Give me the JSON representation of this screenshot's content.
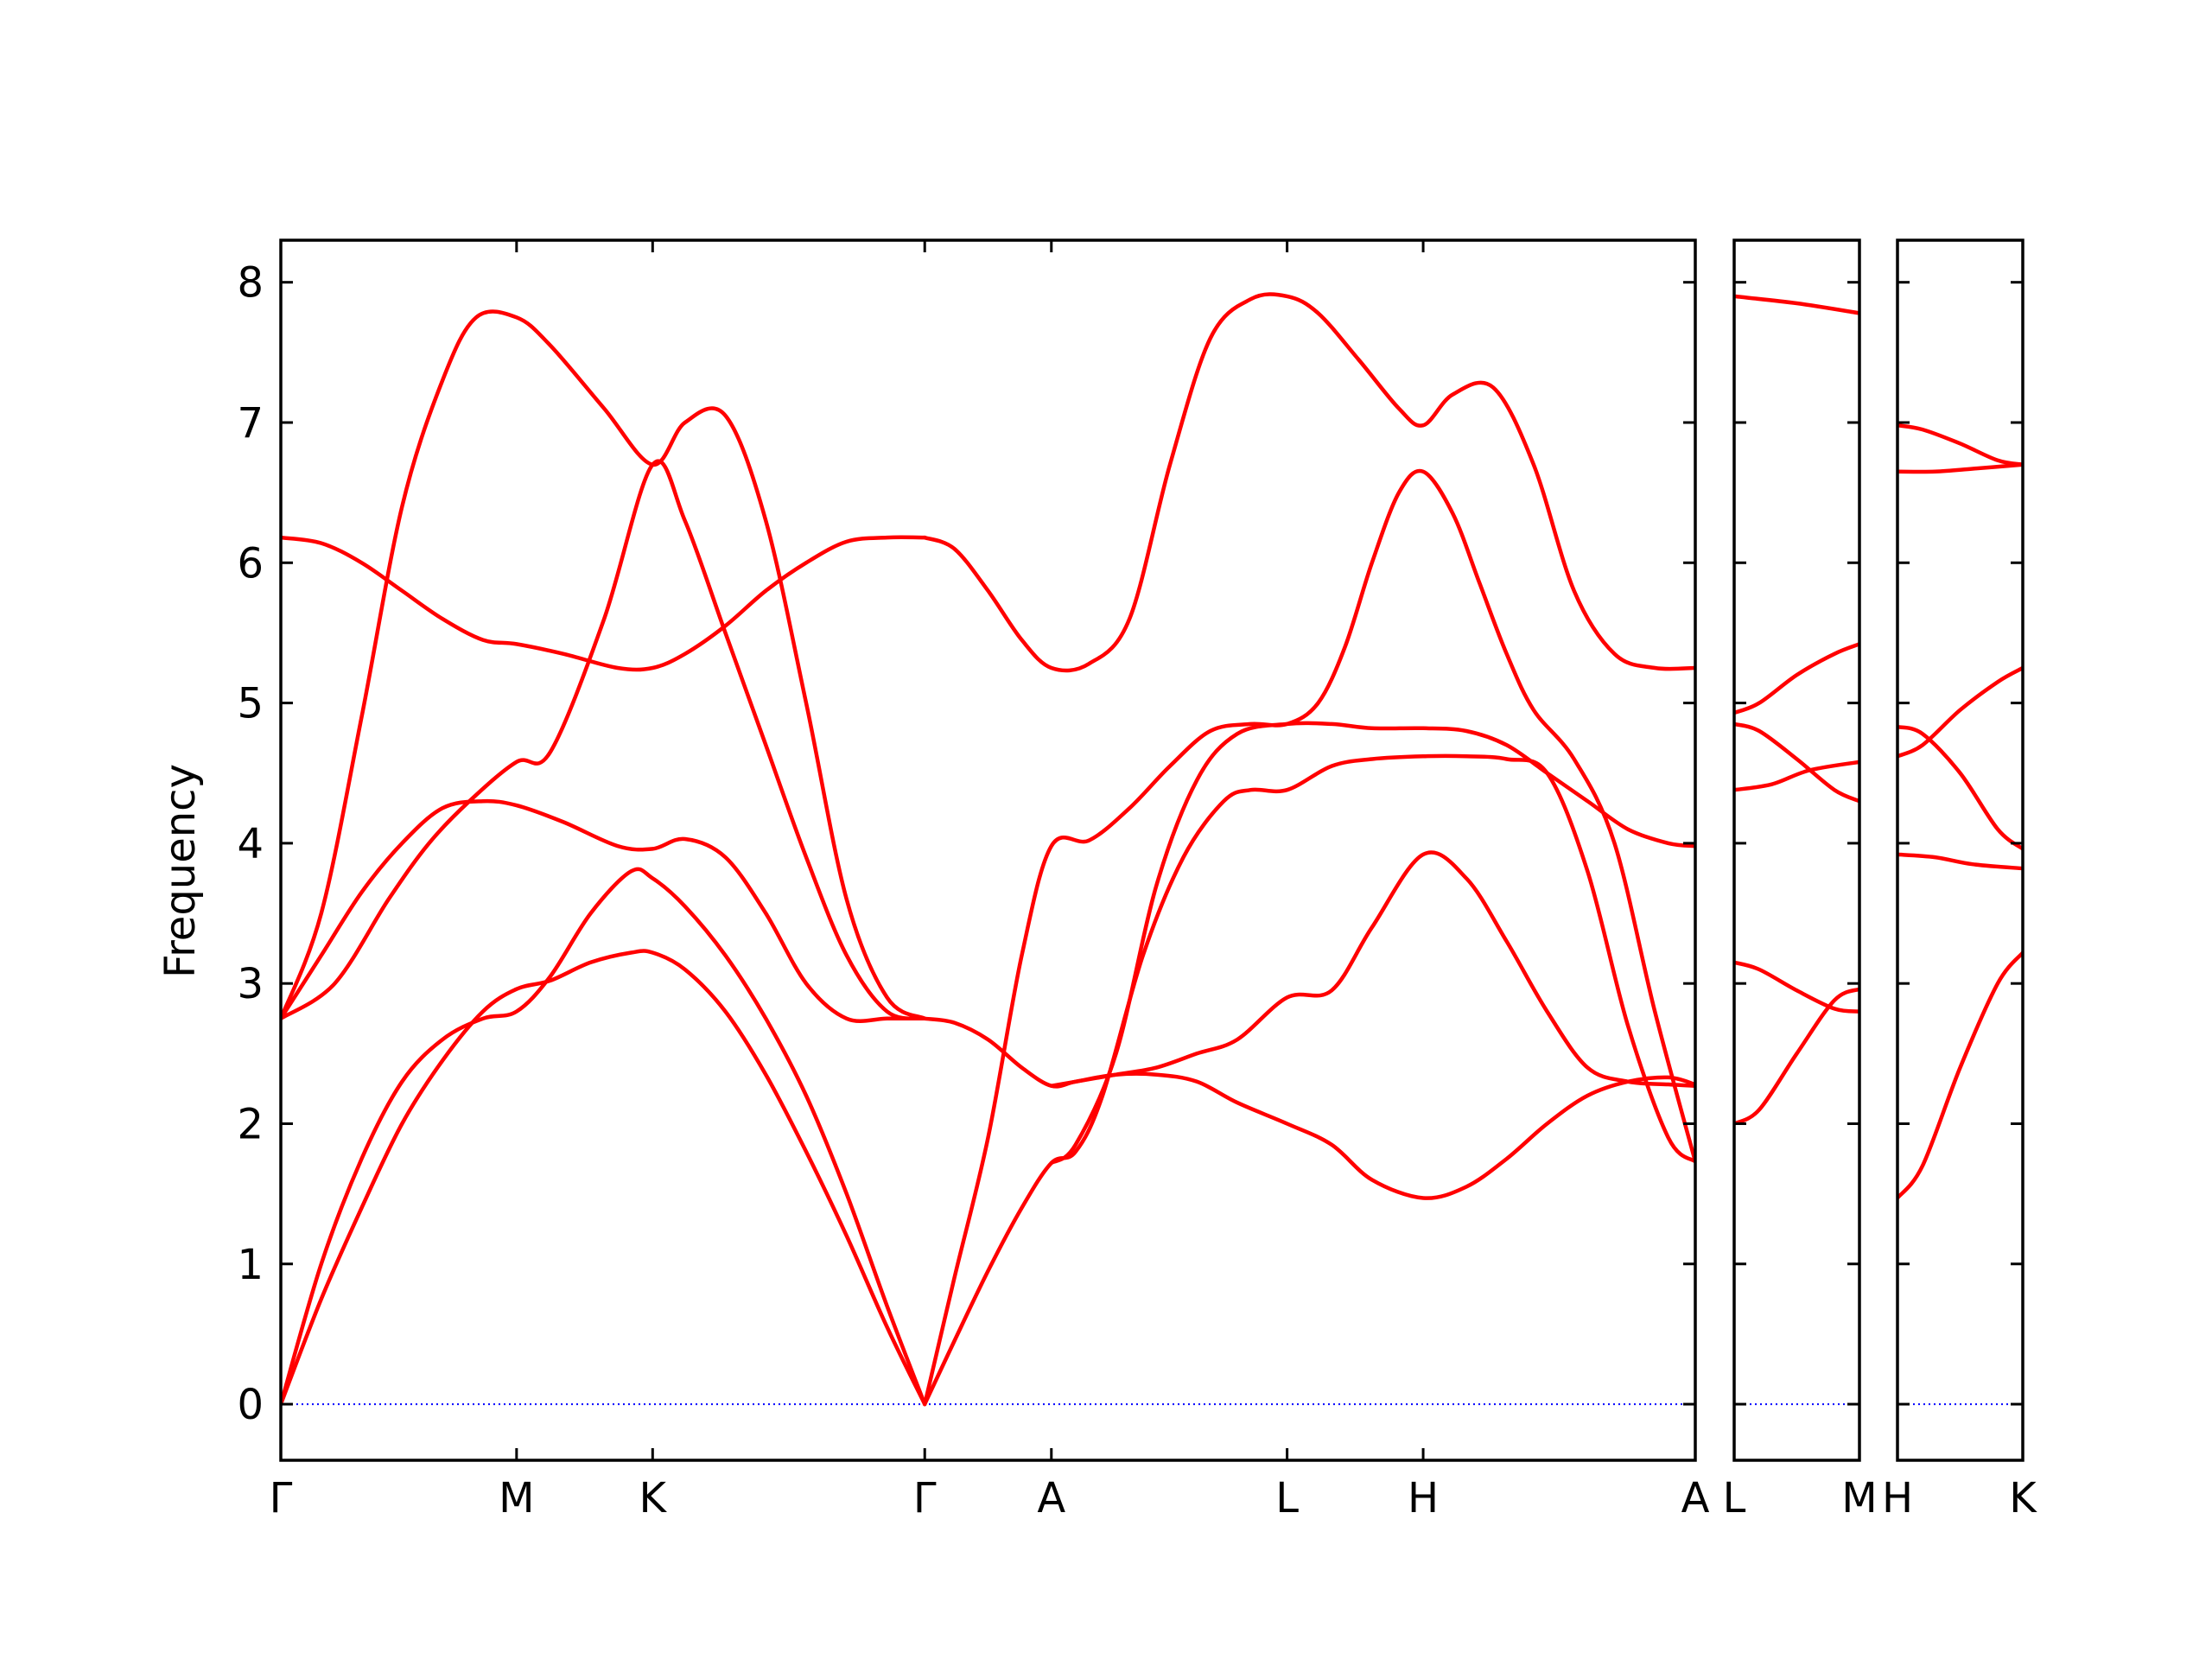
{
  "chart_data": {
    "type": "line",
    "ylabel": "Frequency",
    "ylim": [
      -0.4,
      8.3
    ],
    "yticks": [
      0,
      1,
      2,
      3,
      4,
      5,
      6,
      7,
      8
    ],
    "line_color": "#ff0000",
    "zero_line_color": "#0000ff",
    "panels": [
      {
        "name": "main",
        "x_range": [
          0,
          10.5
        ],
        "ticks": [
          {
            "x": 0,
            "label": "Γ"
          },
          {
            "x": 1.75,
            "label": "M"
          },
          {
            "x": 2.76,
            "label": "K"
          },
          {
            "x": 4.78,
            "label": "Γ"
          },
          {
            "x": 5.72,
            "label": "A"
          },
          {
            "x": 7.47,
            "label": "L"
          },
          {
            "x": 8.48,
            "label": "H"
          },
          {
            "x": 10.5,
            "label": "A"
          }
        ],
        "series": [
          {
            "x": [
              0,
              0.3,
              0.6,
              0.9,
              1.2,
              1.5,
              1.75,
              2.0,
              2.3,
              2.6,
              2.76,
              3.0,
              3.3,
              3.6,
              3.9,
              4.2,
              4.5,
              4.78
            ],
            "y": [
              0,
              1.0,
              1.75,
              2.3,
              2.6,
              2.75,
              2.8,
              3.05,
              3.5,
              3.8,
              3.75,
              3.55,
              3.2,
              2.75,
              2.2,
              1.5,
              0.7,
              0
            ]
          },
          {
            "x": [
              0,
              0.3,
              0.6,
              0.9,
              1.2,
              1.5,
              1.75,
              2.0,
              2.3,
              2.6,
              2.76,
              3.0,
              3.3,
              3.6,
              3.9,
              4.2,
              4.5,
              4.78
            ],
            "y": [
              0,
              0.75,
              1.4,
              2.0,
              2.45,
              2.8,
              2.96,
              3.02,
              3.15,
              3.22,
              3.22,
              3.1,
              2.8,
              2.35,
              1.8,
              1.2,
              0.55,
              0
            ]
          },
          {
            "x": [
              0,
              0.4,
              0.8,
              1.1,
              1.4,
              1.75,
              2.0,
              2.4,
              2.76,
              3.0,
              3.3,
              3.6,
              3.9,
              4.2,
              4.5,
              4.78
            ],
            "y": [
              2.75,
              3.0,
              3.6,
              4.0,
              4.3,
              4.58,
              4.65,
              5.6,
              6.7,
              6.3,
              5.5,
              4.7,
              3.9,
              3.2,
              2.8,
              2.75
            ]
          },
          {
            "x": [
              0,
              0.3,
              0.6,
              0.9,
              1.2,
              1.5,
              1.75,
              2.1,
              2.5,
              2.76,
              3.0,
              3.3,
              3.6,
              3.9,
              4.2,
              4.5,
              4.78
            ],
            "y": [
              2.75,
              3.2,
              3.65,
              4.0,
              4.25,
              4.3,
              4.27,
              4.15,
              3.98,
              3.96,
              4.03,
              3.9,
              3.5,
              3.0,
              2.75,
              2.75,
              2.75
            ]
          },
          {
            "x": [
              0,
              0.3,
              0.6,
              0.9,
              1.2,
              1.45,
              1.75,
              2.0,
              2.4,
              2.76,
              3.0,
              3.3,
              3.6,
              3.9,
              4.2,
              4.5,
              4.78
            ],
            "y": [
              2.75,
              3.5,
              4.9,
              6.4,
              7.3,
              7.75,
              7.75,
              7.55,
              7.1,
              6.7,
              7.0,
              7.05,
              6.3,
              5.0,
              3.6,
              2.9,
              2.75
            ]
          },
          {
            "x": [
              0,
              0.3,
              0.6,
              0.9,
              1.2,
              1.5,
              1.75,
              2.1,
              2.5,
              2.76,
              3.0,
              3.3,
              3.6,
              3.9,
              4.2,
              4.5,
              4.78
            ],
            "y": [
              6.18,
              6.14,
              6.0,
              5.8,
              5.6,
              5.45,
              5.42,
              5.35,
              5.25,
              5.25,
              5.35,
              5.55,
              5.8,
              6.0,
              6.15,
              6.18,
              6.18
            ]
          },
          {
            "x": [
              4.78,
              5.0,
              5.25,
              5.5,
              5.72,
              6.0,
              6.3,
              6.6,
              6.9,
              7.2,
              7.47,
              7.7,
              8.0,
              8.3,
              8.48,
              8.7,
              9.0,
              9.3,
              9.6,
              9.9,
              10.2,
              10.5
            ],
            "y": [
              6.18,
              6.1,
              5.8,
              5.45,
              5.25,
              5.28,
              5.6,
              6.7,
              7.6,
              7.88,
              7.9,
              7.78,
              7.45,
              7.1,
              6.98,
              7.2,
              7.25,
              6.7,
              5.8,
              5.35,
              5.25,
              5.25
            ]
          },
          {
            "x": [
              4.78,
              5.0,
              5.25,
              5.5,
              5.72,
              6.0,
              6.3,
              6.6,
              6.9,
              7.2,
              7.47,
              7.7,
              7.9,
              8.1,
              8.3,
              8.48,
              8.7,
              8.9,
              9.1,
              9.3,
              9.6,
              9.9,
              10.2,
              10.5
            ],
            "y": [
              0,
              0.9,
              1.9,
              3.2,
              3.98,
              4.02,
              4.25,
              4.55,
              4.8,
              4.85,
              4.85,
              5.0,
              5.4,
              6.0,
              6.5,
              6.65,
              6.35,
              5.85,
              5.35,
              4.95,
              4.6,
              4.0,
              2.8,
              1.73
            ]
          },
          {
            "x": [
              4.78,
              5.0,
              5.25,
              5.5,
              5.72,
              5.9,
              6.1,
              6.4,
              6.7,
              7.0,
              7.2,
              7.47,
              7.8,
              8.1,
              8.48,
              8.8,
              9.1,
              9.4,
              9.7,
              10.0,
              10.3,
              10.5
            ],
            "y": [
              0,
              0.45,
              0.95,
              1.4,
              1.72,
              1.8,
              2.2,
              3.2,
              3.9,
              4.3,
              4.38,
              4.38,
              4.55,
              4.6,
              4.62,
              4.62,
              4.6,
              4.5,
              3.8,
              2.7,
              1.9,
              1.73
            ]
          },
          {
            "x": [
              4.78,
              5.0,
              5.25,
              5.5,
              5.72,
              5.9,
              6.2,
              6.5,
              6.8,
              7.1,
              7.47,
              7.8,
              8.1,
              8.48,
              8.8,
              9.1,
              9.4,
              9.7,
              10.0,
              10.3,
              10.5
            ],
            "y": [
              2.75,
              2.72,
              2.6,
              2.4,
              2.27,
              2.3,
              2.35,
              2.4,
              2.5,
              2.6,
              2.9,
              2.95,
              3.4,
              3.92,
              3.75,
              3.3,
              2.8,
              2.4,
              2.3,
              2.28,
              2.27
            ]
          },
          {
            "x": [
              5.72,
              5.9,
              6.2,
              6.5,
              6.8,
              7.1,
              7.47,
              7.8,
              8.1,
              8.48,
              8.8,
              9.1,
              9.4,
              9.7,
              10.0,
              10.3,
              10.5
            ],
            "y": [
              1.72,
              1.85,
              2.5,
              3.7,
              4.45,
              4.78,
              4.85,
              4.85,
              4.82,
              4.82,
              4.8,
              4.7,
              4.5,
              4.3,
              4.1,
              4.0,
              3.98
            ]
          },
          {
            "x": [
              5.72,
              5.9,
              6.2,
              6.5,
              6.8,
              7.1,
              7.47,
              7.8,
              8.1,
              8.48,
              8.8,
              9.1,
              9.4,
              9.7,
              10.0,
              10.3,
              10.5
            ],
            "y": [
              2.27,
              2.3,
              2.35,
              2.35,
              2.3,
              2.15,
              2.0,
              1.85,
              1.6,
              1.47,
              1.55,
              1.75,
              2.0,
              2.2,
              2.3,
              2.33,
              2.28
            ]
          }
        ]
      },
      {
        "name": "L-M",
        "x_range": [
          0,
          1
        ],
        "ticks": [
          {
            "x": 0,
            "label": "L"
          },
          {
            "x": 1,
            "label": "M"
          }
        ],
        "series": [
          {
            "x": [
              0,
              0.5,
              1
            ],
            "y": [
              7.9,
              7.85,
              7.78
            ]
          },
          {
            "x": [
              0,
              0.2,
              0.5,
              0.8,
              1
            ],
            "y": [
              4.93,
              5.0,
              5.2,
              5.35,
              5.42
            ]
          },
          {
            "x": [
              0,
              0.2,
              0.5,
              0.8,
              1
            ],
            "y": [
              4.85,
              4.8,
              4.6,
              4.38,
              4.3
            ]
          },
          {
            "x": [
              0,
              0.3,
              0.6,
              1
            ],
            "y": [
              4.38,
              4.42,
              4.52,
              4.58
            ]
          },
          {
            "x": [
              0,
              0.2,
              0.5,
              0.8,
              1
            ],
            "y": [
              3.15,
              3.1,
              2.95,
              2.82,
              2.8
            ]
          },
          {
            "x": [
              0,
              0.2,
              0.5,
              0.8,
              1
            ],
            "y": [
              2.0,
              2.1,
              2.5,
              2.88,
              2.96
            ]
          }
        ]
      },
      {
        "name": "H-K",
        "x_range": [
          0,
          1
        ],
        "ticks": [
          {
            "x": 0,
            "label": "H"
          },
          {
            "x": 1,
            "label": "K"
          }
        ],
        "series": [
          {
            "x": [
              0,
              0.2,
              0.5,
              0.8,
              1
            ],
            "y": [
              6.98,
              6.95,
              6.85,
              6.73,
              6.7
            ]
          },
          {
            "x": [
              0,
              0.3,
              0.6,
              1
            ],
            "y": [
              6.65,
              6.65,
              6.67,
              6.7
            ]
          },
          {
            "x": [
              0,
              0.2,
              0.5,
              0.8,
              1
            ],
            "y": [
              4.83,
              4.78,
              4.5,
              4.1,
              3.96
            ]
          },
          {
            "x": [
              0,
              0.2,
              0.5,
              0.8,
              1
            ],
            "y": [
              4.62,
              4.7,
              4.95,
              5.15,
              5.25
            ]
          },
          {
            "x": [
              0,
              0.3,
              0.6,
              1
            ],
            "y": [
              3.92,
              3.9,
              3.85,
              3.82
            ]
          },
          {
            "x": [
              0,
              0.2,
              0.5,
              0.8,
              1
            ],
            "y": [
              1.47,
              1.7,
              2.4,
              3.0,
              3.22
            ]
          }
        ]
      }
    ]
  }
}
